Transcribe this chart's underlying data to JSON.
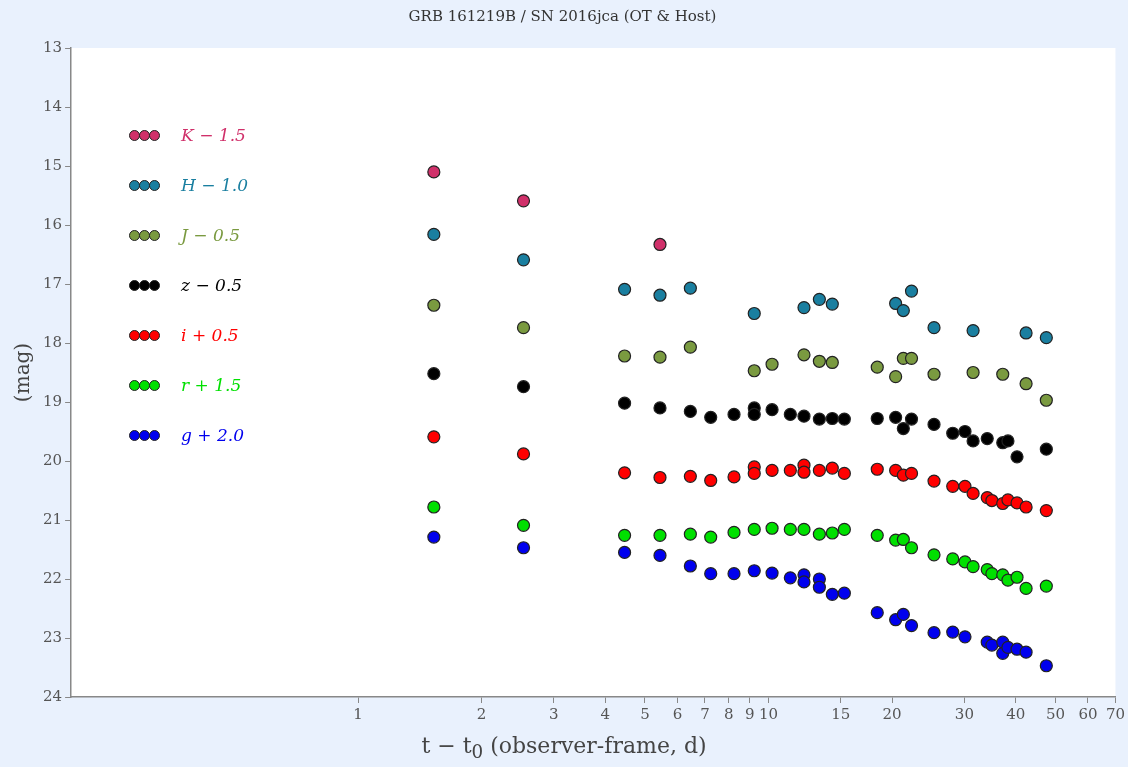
{
  "chart_data": {
    "type": "scatter",
    "title": "GRB 161219B / SN 2016jca (OT & Host)",
    "xlabel": "t − t$_{0}$ (observer-frame, d)",
    "ylabel": "(mag)",
    "log": "x",
    "xlim": [
      0.2,
      70
    ],
    "xticks": [
      1,
      2,
      3,
      4,
      5,
      6,
      7,
      8,
      9,
      10,
      15,
      20,
      30,
      40,
      50,
      60,
      70
    ],
    "ylim": [
      24,
      13
    ],
    "yticks": [
      13,
      14,
      15,
      16,
      17,
      18,
      19,
      20,
      21,
      22,
      23,
      24
    ],
    "grid": false,
    "legend": "top left",
    "marker": "circle",
    "series": [
      {
        "name": "K − 1.5",
        "color": "#d0306a",
        "x": [
          1.53,
          2.53,
          5.44
        ],
        "values": [
          15.1,
          15.59,
          16.33
        ]
      },
      {
        "name": "H − 1.0",
        "color": "#1a7fa0",
        "x": [
          1.53,
          2.53,
          4.46,
          5.44,
          6.45,
          9.23,
          12.2,
          13.3,
          14.3,
          20.4,
          21.3,
          22.3,
          25.3,
          31.5,
          42.4,
          47.5
        ],
        "values": [
          16.16,
          16.59,
          17.09,
          17.19,
          17.07,
          17.5,
          17.4,
          17.26,
          17.34,
          17.33,
          17.45,
          17.12,
          17.74,
          17.79,
          17.83,
          17.91
        ]
      },
      {
        "name": "J − 0.5",
        "color": "#7a9a40",
        "x": [
          1.53,
          2.53,
          4.46,
          5.44,
          6.45,
          9.23,
          10.2,
          12.2,
          13.3,
          14.3,
          18.4,
          20.4,
          21.3,
          22.3,
          25.3,
          31.5,
          37.2,
          42.4,
          47.5
        ],
        "values": [
          17.36,
          17.74,
          18.22,
          18.24,
          18.07,
          18.47,
          18.36,
          18.2,
          18.31,
          18.33,
          18.41,
          18.57,
          18.26,
          18.26,
          18.53,
          18.5,
          18.53,
          18.69,
          18.97
        ]
      },
      {
        "name": "z − 0.5",
        "color": "#000000",
        "x": [
          1.53,
          2.53,
          4.46,
          5.44,
          6.45,
          7.23,
          8.24,
          9.23,
          9.23,
          10.2,
          11.3,
          12.2,
          13.3,
          14.3,
          15.3,
          18.4,
          20.4,
          21.3,
          22.3,
          25.3,
          28.1,
          30.1,
          31.5,
          34.1,
          37.2,
          38.3,
          40.3,
          47.5
        ],
        "values": [
          18.52,
          18.74,
          19.02,
          19.1,
          19.16,
          19.26,
          19.21,
          19.1,
          19.21,
          19.13,
          19.21,
          19.24,
          19.29,
          19.28,
          19.29,
          19.28,
          19.26,
          19.45,
          19.29,
          19.38,
          19.53,
          19.5,
          19.66,
          19.62,
          19.69,
          19.66,
          19.93,
          19.8
        ]
      },
      {
        "name": "i + 0.5",
        "color": "#ff0000",
        "x": [
          1.53,
          2.53,
          4.46,
          5.44,
          6.45,
          7.23,
          8.24,
          9.23,
          9.23,
          10.2,
          11.3,
          12.2,
          12.2,
          13.3,
          14.3,
          15.3,
          18.4,
          20.4,
          21.3,
          22.3,
          25.3,
          28.1,
          30.1,
          31.5,
          34.1,
          35.0,
          37.2,
          38.3,
          40.3,
          42.4,
          47.5
        ],
        "values": [
          19.59,
          19.88,
          20.2,
          20.28,
          20.26,
          20.33,
          20.27,
          20.1,
          20.21,
          20.16,
          20.16,
          20.07,
          20.19,
          20.16,
          20.12,
          20.21,
          20.14,
          20.16,
          20.24,
          20.21,
          20.34,
          20.43,
          20.43,
          20.55,
          20.62,
          20.67,
          20.72,
          20.66,
          20.71,
          20.78,
          20.84
        ]
      },
      {
        "name": "r + 1.5",
        "color": "#00e000",
        "x": [
          1.53,
          2.53,
          4.46,
          5.44,
          6.45,
          7.23,
          8.24,
          9.23,
          10.2,
          11.3,
          12.2,
          13.3,
          14.3,
          15.3,
          18.4,
          20.4,
          21.3,
          22.3,
          25.3,
          28.1,
          30.1,
          31.5,
          34.1,
          35.0,
          37.2,
          38.3,
          40.3,
          42.4,
          47.5
        ],
        "values": [
          20.78,
          21.09,
          21.26,
          21.26,
          21.24,
          21.29,
          21.21,
          21.16,
          21.14,
          21.16,
          21.16,
          21.24,
          21.22,
          21.16,
          21.26,
          21.34,
          21.33,
          21.47,
          21.59,
          21.66,
          21.71,
          21.79,
          21.84,
          21.91,
          21.93,
          22.02,
          21.97,
          22.16,
          22.12
        ]
      },
      {
        "name": "g + 2.0",
        "color": "#0000ee",
        "x": [
          1.53,
          2.53,
          4.46,
          5.44,
          6.45,
          7.23,
          8.24,
          9.23,
          10.2,
          11.3,
          12.2,
          12.2,
          13.3,
          13.3,
          14.3,
          15.3,
          18.4,
          20.4,
          21.3,
          22.3,
          25.3,
          28.1,
          30.1,
          34.1,
          35.0,
          37.2,
          37.2,
          38.3,
          40.3,
          42.4,
          47.5
        ],
        "values": [
          21.29,
          21.47,
          21.55,
          21.6,
          21.78,
          21.91,
          21.91,
          21.86,
          21.9,
          21.98,
          21.93,
          22.05,
          22.0,
          22.14,
          22.26,
          22.24,
          22.57,
          22.69,
          22.6,
          22.79,
          22.91,
          22.9,
          22.98,
          23.07,
          23.12,
          23.07,
          23.26,
          23.16,
          23.19,
          23.24,
          23.47
        ]
      }
    ]
  }
}
